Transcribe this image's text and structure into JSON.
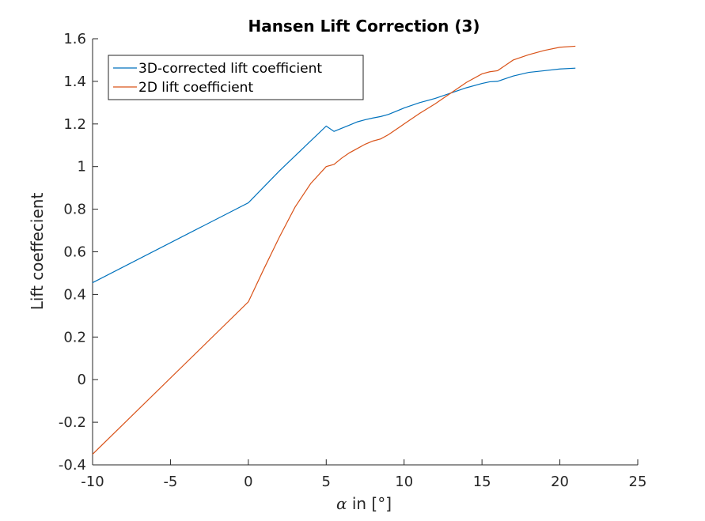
{
  "chart_data": {
    "type": "line",
    "title": "Hansen Lift Correction (3)",
    "xlabel_symbol": "α",
    "xlabel_text": " in [°]",
    "ylabel": "Lift coeffecient",
    "xlim": [
      -10,
      25
    ],
    "ylim": [
      -0.4,
      1.6
    ],
    "xticks": [
      -10,
      -5,
      0,
      5,
      10,
      15,
      20,
      25
    ],
    "xtick_labels": [
      "-10",
      "-5",
      "0",
      "5",
      "10",
      "15",
      "20",
      "25"
    ],
    "yticks": [
      -0.4,
      -0.2,
      0,
      0.2,
      0.4,
      0.6,
      0.8,
      1,
      1.2,
      1.4,
      1.6
    ],
    "ytick_labels": [
      "-0.4",
      "-0.2",
      "0",
      "0.2",
      "0.4",
      "0.6",
      "0.8",
      "1",
      "1.2",
      "1.4",
      "1.6"
    ],
    "grid": false,
    "legend_position": "top-left",
    "series": [
      {
        "name": "3D-corrected lift coefficient",
        "color": "#0072BD",
        "x": [
          -10,
          0,
          1,
          2,
          3,
          4,
          5,
          5.5,
          6,
          6.5,
          7,
          7.5,
          8,
          8.5,
          9,
          10,
          11,
          12,
          13,
          14,
          15,
          15.5,
          16,
          17,
          18,
          19,
          20,
          21
        ],
        "y": [
          0.455,
          0.83,
          0.905,
          0.98,
          1.05,
          1.12,
          1.19,
          1.165,
          1.18,
          1.195,
          1.21,
          1.22,
          1.228,
          1.235,
          1.245,
          1.275,
          1.3,
          1.32,
          1.345,
          1.37,
          1.39,
          1.398,
          1.4,
          1.425,
          1.442,
          1.45,
          1.458,
          1.462
        ]
      },
      {
        "name": "2D lift coefficient",
        "color": "#D95319",
        "x": [
          -10,
          0,
          1,
          2,
          3,
          4,
          5,
          5.5,
          6,
          6.5,
          7,
          7.5,
          8,
          8.5,
          9,
          10,
          11,
          12,
          13,
          14,
          15,
          15.5,
          16,
          17,
          18,
          19,
          20,
          21
        ],
        "y": [
          -0.35,
          0.365,
          0.52,
          0.67,
          0.81,
          0.92,
          1.0,
          1.01,
          1.04,
          1.065,
          1.085,
          1.105,
          1.12,
          1.13,
          1.15,
          1.2,
          1.25,
          1.295,
          1.345,
          1.395,
          1.435,
          1.445,
          1.45,
          1.5,
          1.525,
          1.545,
          1.56,
          1.565
        ]
      }
    ]
  }
}
